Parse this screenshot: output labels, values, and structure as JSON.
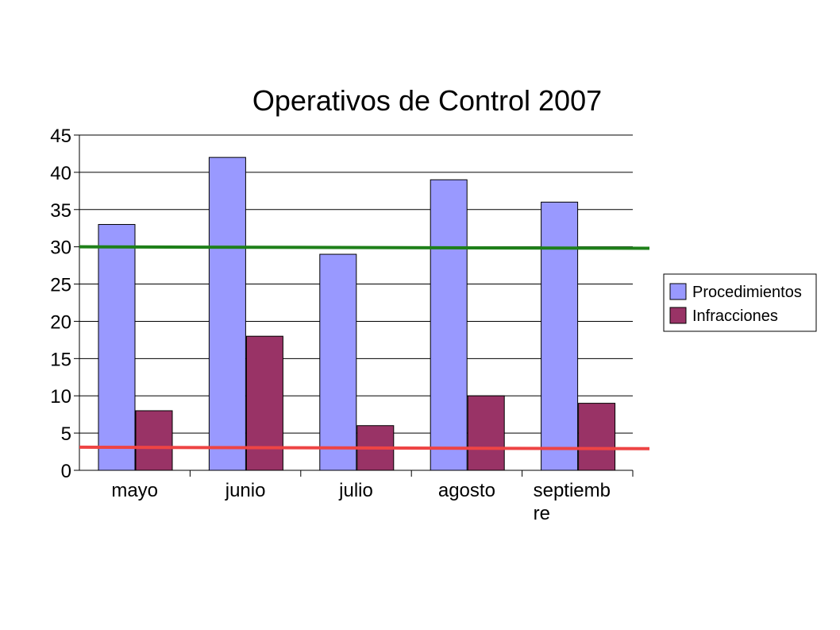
{
  "chart_data": {
    "type": "bar",
    "title": "Operativos de Control 2007",
    "categories": [
      "mayo",
      "junio",
      "julio",
      "agosto",
      "septiembre"
    ],
    "category_label_lines": [
      [
        "mayo"
      ],
      [
        "junio"
      ],
      [
        "julio"
      ],
      [
        "agosto"
      ],
      [
        "septiemb",
        "re"
      ]
    ],
    "series": [
      {
        "name": "Procedimientos",
        "values": [
          33,
          42,
          29,
          39,
          36
        ],
        "color": "#9999FF"
      },
      {
        "name": "Infracciones",
        "values": [
          8,
          18,
          6,
          10,
          9
        ],
        "color": "#993366"
      }
    ],
    "ylim": [
      0,
      45
    ],
    "yticks": [
      0,
      5,
      10,
      15,
      20,
      25,
      30,
      35,
      40,
      45
    ],
    "grid": true,
    "legend_position": "right",
    "reference_lines": [
      {
        "y_start": 30,
        "y_end": 29.8,
        "color": "#1E8019"
      },
      {
        "y_start": 3.1,
        "y_end": 2.9,
        "color": "#EE4444"
      }
    ]
  }
}
